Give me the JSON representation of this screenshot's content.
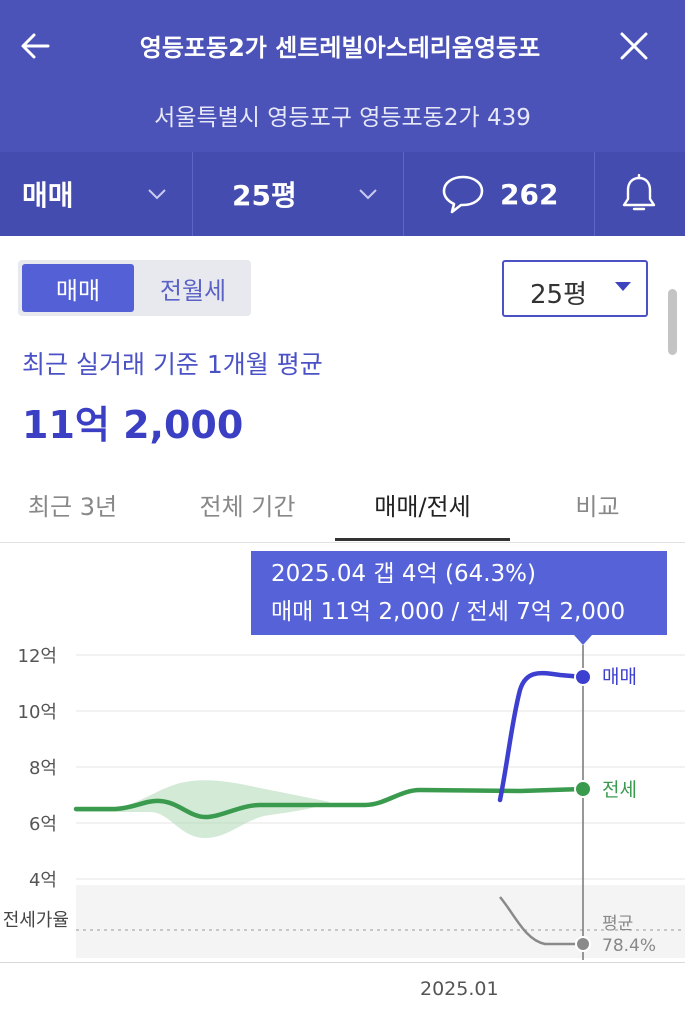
{
  "header": {
    "title": "영등포동2가 센트레빌아스테리움영등포",
    "address": "서울특별시 영등포구 영등포동2가 439"
  },
  "filters": {
    "trade_type": "매매",
    "area": "25평",
    "comment_count": "262"
  },
  "segment": {
    "options": [
      "매매",
      "전월세"
    ],
    "selected": "매매"
  },
  "area_select": {
    "value": "25평"
  },
  "summary": {
    "label": "최근 실거래 기준 1개월 평균",
    "value": "11억 2,000"
  },
  "tabs": [
    "최근 3년",
    "전체 기간",
    "매매/전세",
    "비교"
  ],
  "active_tab": "매매/전세",
  "tooltip": {
    "line1": "2025.04  갭 4억 (64.3%)",
    "line2": "매매 11억 2,000 / 전세 7억 2,000"
  },
  "colors": {
    "brand": "#4b52b8",
    "sale": "#3d3fd0",
    "jeonse": "#3a9a4e",
    "ratio": "#8a8a8a"
  },
  "chart_data": {
    "type": "line",
    "y_ticks": [
      "12억",
      "10억",
      "8억",
      "6억",
      "4억"
    ],
    "ylim": [
      4,
      12
    ],
    "x_ticks": [
      "2025.01"
    ],
    "series": [
      {
        "name": "매매",
        "label": "매매",
        "end_value": 11.2
      },
      {
        "name": "전세",
        "label": "전세",
        "end_value": 7.2
      }
    ],
    "ratio": {
      "axis_label": "전세가율",
      "avg_label": "평균",
      "avg_value": "78.4%"
    },
    "highlight": {
      "period": "2025.04",
      "gap": "4억",
      "gap_pct": "64.3%",
      "sale": "11억 2,000",
      "jeonse": "7억 2,000"
    }
  }
}
